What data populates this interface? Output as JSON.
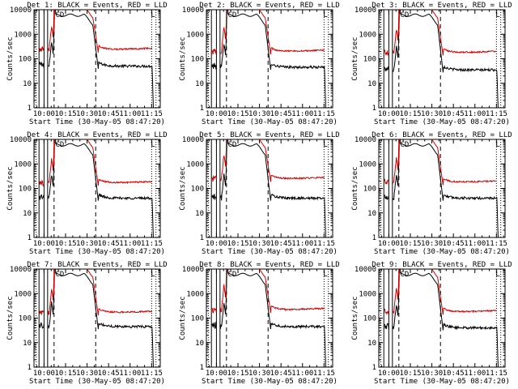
{
  "chart_data": [
    {
      "type": "line",
      "title": "Det 1: BLACK = Events, RED = LLD",
      "xlabel": "Start Time (30-May-05 08:47:20)",
      "ylabel": "Counts/sec",
      "x_ticks": [
        "10:00",
        "10:15",
        "10:30",
        "10:45",
        "11:00",
        "11:15"
      ],
      "y_ticks": [
        "1",
        "10",
        "100",
        "1000",
        "10000"
      ],
      "ylim": [
        1,
        10000
      ],
      "scale": "log",
      "markers": [
        "C",
        "D",
        "L"
      ],
      "series": [
        {
          "name": "Events",
          "color": "#000000",
          "base": 50,
          "peak": 6000
        },
        {
          "name": "LLD",
          "color": "#cc0000",
          "base": 240,
          "peak": 12000
        }
      ]
    },
    {
      "type": "line",
      "title": "Det 2: BLACK = Events, RED = LLD",
      "xlabel": "Start Time (30-May-05 08:47:20)",
      "ylabel": "Counts/sec",
      "x_ticks": [
        "10:00",
        "10:15",
        "10:30",
        "10:45",
        "11:00",
        "11:15"
      ],
      "y_ticks": [
        "1",
        "10",
        "100",
        "1000",
        "10000"
      ],
      "ylim": [
        1,
        10000
      ],
      "scale": "log",
      "markers": [
        "C",
        "D",
        "L"
      ],
      "series": [
        {
          "name": "Events",
          "color": "#000000",
          "base": 45,
          "peak": 6000
        },
        {
          "name": "LLD",
          "color": "#cc0000",
          "base": 200,
          "peak": 12000
        }
      ]
    },
    {
      "type": "line",
      "title": "Det 3: BLACK = Events, RED = LLD",
      "xlabel": "Start Time (30-May-05 08:47:20)",
      "ylabel": "Counts/sec",
      "x_ticks": [
        "10:00",
        "10:15",
        "10:30",
        "10:45",
        "11:00",
        "11:15"
      ],
      "y_ticks": [
        "1",
        "10",
        "100",
        "1000",
        "10000"
      ],
      "ylim": [
        1,
        10000
      ],
      "scale": "log",
      "markers": [
        "C",
        "D",
        "L"
      ],
      "series": [
        {
          "name": "Events",
          "color": "#000000",
          "base": 35,
          "peak": 6000
        },
        {
          "name": "LLD",
          "color": "#cc0000",
          "base": 180,
          "peak": 12000
        }
      ]
    },
    {
      "type": "line",
      "title": "Det 4: BLACK = Events, RED = LLD",
      "xlabel": "Start Time (30-May-05 08:47:20)",
      "ylabel": "Counts/sec",
      "x_ticks": [
        "10:00",
        "10:15",
        "10:30",
        "10:45",
        "11:00",
        "11:15"
      ],
      "y_ticks": [
        "1",
        "10",
        "100",
        "1000",
        "10000"
      ],
      "ylim": [
        1,
        10000
      ],
      "scale": "log",
      "markers": [
        "C",
        "D",
        "L"
      ],
      "series": [
        {
          "name": "Events",
          "color": "#000000",
          "base": 40,
          "peak": 6000
        },
        {
          "name": "LLD",
          "color": "#cc0000",
          "base": 170,
          "peak": 12000
        }
      ]
    },
    {
      "type": "line",
      "title": "Det 5: BLACK = Events, RED = LLD",
      "xlabel": "Start Time (30-May-05 08:47:20)",
      "ylabel": "Counts/sec",
      "x_ticks": [
        "10:00",
        "10:15",
        "10:30",
        "10:45",
        "11:00",
        "11:15"
      ],
      "y_ticks": [
        "1",
        "10",
        "100",
        "1000",
        "10000"
      ],
      "ylim": [
        1,
        10000
      ],
      "scale": "log",
      "markers": [
        "C",
        "D",
        "L"
      ],
      "series": [
        {
          "name": "Events",
          "color": "#000000",
          "base": 40,
          "peak": 6000
        },
        {
          "name": "LLD",
          "color": "#cc0000",
          "base": 250,
          "peak": 12000
        }
      ]
    },
    {
      "type": "line",
      "title": "Det 6: BLACK = Events, RED = LLD",
      "xlabel": "Start Time (30-May-05 08:47:20)",
      "ylabel": "Counts/sec",
      "x_ticks": [
        "10:00",
        "10:15",
        "10:30",
        "10:45",
        "11:00",
        "11:15"
      ],
      "y_ticks": [
        "1",
        "10",
        "100",
        "1000",
        "10000"
      ],
      "ylim": [
        1,
        10000
      ],
      "scale": "log",
      "markers": [
        "C",
        "D",
        "L"
      ],
      "series": [
        {
          "name": "Events",
          "color": "#000000",
          "base": 40,
          "peak": 6000
        },
        {
          "name": "LLD",
          "color": "#cc0000",
          "base": 180,
          "peak": 12000
        }
      ]
    },
    {
      "type": "line",
      "title": "Det 7: BLACK = Events, RED = LLD",
      "xlabel": "Start Time (30-May-05 08:47:20)",
      "ylabel": "Counts/sec",
      "x_ticks": [
        "10:00",
        "10:15",
        "10:30",
        "10:45",
        "11:00",
        "11:15"
      ],
      "y_ticks": [
        "1",
        "10",
        "100",
        "1000",
        "10000"
      ],
      "ylim": [
        1,
        10000
      ],
      "scale": "log",
      "markers": [
        "C",
        "D",
        "L"
      ],
      "series": [
        {
          "name": "Events",
          "color": "#000000",
          "base": 45,
          "peak": 6000
        },
        {
          "name": "LLD",
          "color": "#cc0000",
          "base": 170,
          "peak": 12000
        }
      ]
    },
    {
      "type": "line",
      "title": "Det 8: BLACK = Events, RED = LLD",
      "xlabel": "Start Time (30-May-05 08:47:20)",
      "ylabel": "Counts/sec",
      "x_ticks": [
        "10:00",
        "10:15",
        "10:30",
        "10:45",
        "11:00",
        "11:15"
      ],
      "y_ticks": [
        "1",
        "10",
        "100",
        "1000",
        "10000"
      ],
      "ylim": [
        1,
        10000
      ],
      "scale": "log",
      "markers": [
        "C",
        "D",
        "L"
      ],
      "series": [
        {
          "name": "Events",
          "color": "#000000",
          "base": 45,
          "peak": 6000
        },
        {
          "name": "LLD",
          "color": "#cc0000",
          "base": 220,
          "peak": 12000
        }
      ]
    },
    {
      "type": "line",
      "title": "Det 9: BLACK = Events, RED = LLD",
      "xlabel": "Start Time (30-May-05 08:47:20)",
      "ylabel": "Counts/sec",
      "x_ticks": [
        "10:00",
        "10:15",
        "10:30",
        "10:45",
        "11:00",
        "11:15"
      ],
      "y_ticks": [
        "1",
        "10",
        "100",
        "1000",
        "10000"
      ],
      "ylim": [
        1,
        10000
      ],
      "scale": "log",
      "markers": [
        "C",
        "D",
        "L"
      ],
      "series": [
        {
          "name": "Events",
          "color": "#000000",
          "base": 40,
          "peak": 6000
        },
        {
          "name": "LLD",
          "color": "#cc0000",
          "base": 180,
          "peak": 12000
        }
      ]
    }
  ]
}
